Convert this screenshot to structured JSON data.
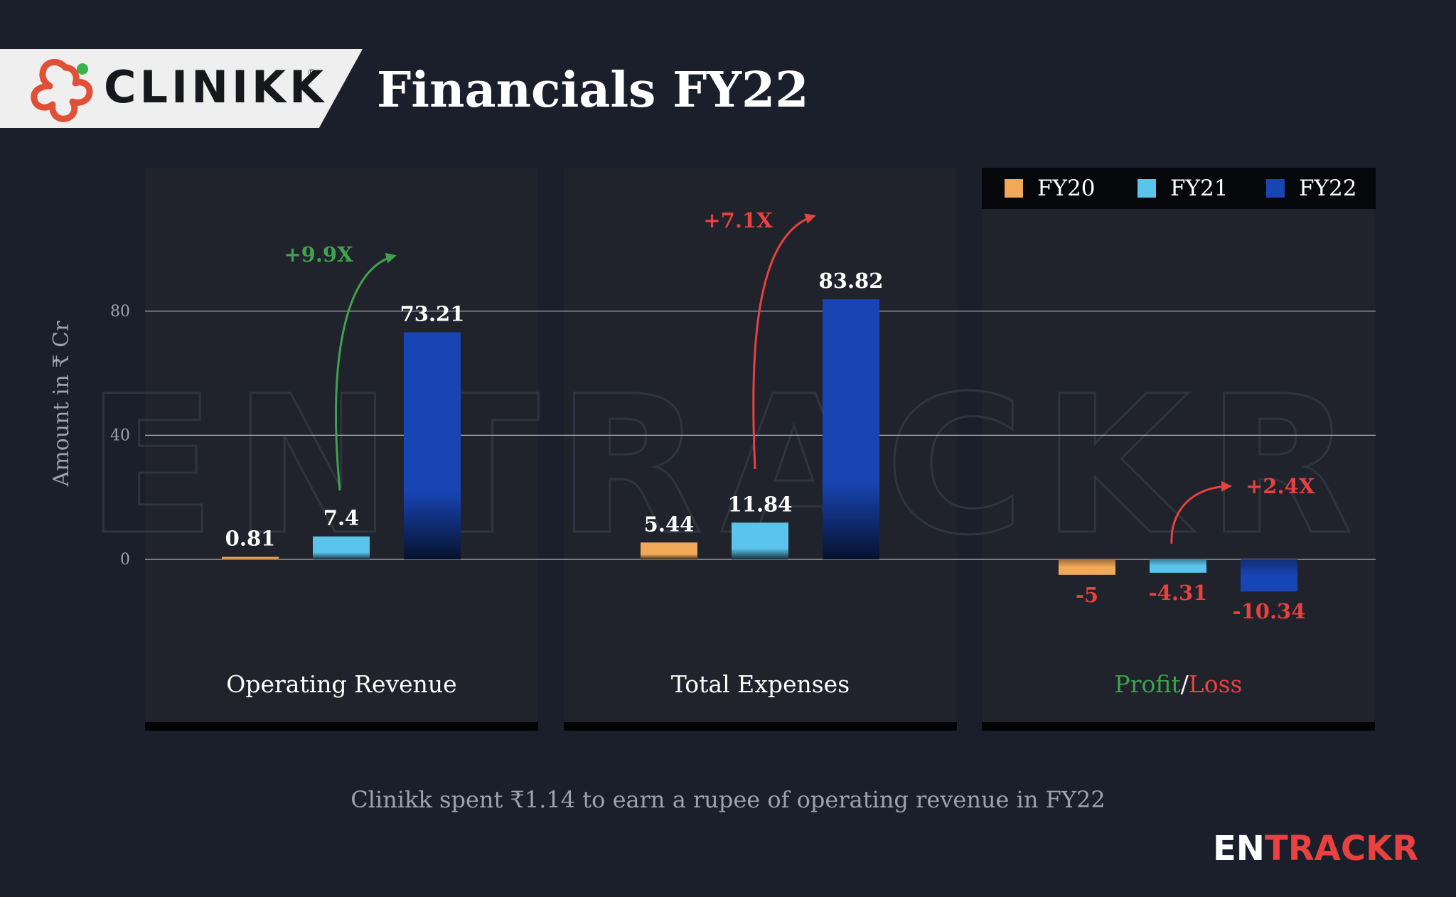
{
  "header": {
    "logo_text": "CLINIKK",
    "logo_reg": "®",
    "title": "Financials FY22"
  },
  "colors": {
    "background": "#1b1f2b",
    "FY20": "#f1a858",
    "FY21": "#5bc4ec",
    "FY22": "#1845b4",
    "growth_positive": "#3fa34d",
    "growth_negative": "#e8413f"
  },
  "chart_data": {
    "type": "bar",
    "ylabel": "Amount in ₹ Cr",
    "yticks": [
      0,
      40,
      80
    ],
    "ylim": [
      -25,
      100
    ],
    "grid": true,
    "legend_position": "top-right",
    "series": [
      {
        "name": "FY20",
        "values": [
          0.81,
          5.44,
          -5
        ]
      },
      {
        "name": "FY21",
        "values": [
          7.4,
          11.84,
          -4.31
        ]
      },
      {
        "name": "FY22",
        "values": [
          73.21,
          83.82,
          -10.34
        ]
      }
    ],
    "value_labels": [
      [
        "0.81",
        "7.4",
        "73.21"
      ],
      [
        "5.44",
        "11.84",
        "83.82"
      ],
      [
        "-5",
        "-4.31",
        "-10.34"
      ]
    ],
    "groups": [
      {
        "label": [
          {
            "text": "Operating Revenue",
            "color": "#ffffff"
          }
        ],
        "growth": "+9.9X",
        "growth_color": "#3fa34d"
      },
      {
        "label": [
          {
            "text": "Total Expenses",
            "color": "#ffffff"
          }
        ],
        "growth": "+7.1X",
        "growth_color": "#e8413f"
      },
      {
        "label": [
          {
            "text": "Profit",
            "color": "#3fa34d"
          },
          {
            "text": "/",
            "color": "#ffffff"
          },
          {
            "text": "Loss",
            "color": "#e8413f"
          }
        ],
        "growth": "+2.4X",
        "growth_color": "#e8413f"
      }
    ]
  },
  "watermark": "ENTRACKR",
  "footnote": "Clinikk spent ₹1.14 to earn a rupee of operating revenue in FY22",
  "brand": {
    "part1": "EN",
    "part2": "TRACKR"
  }
}
